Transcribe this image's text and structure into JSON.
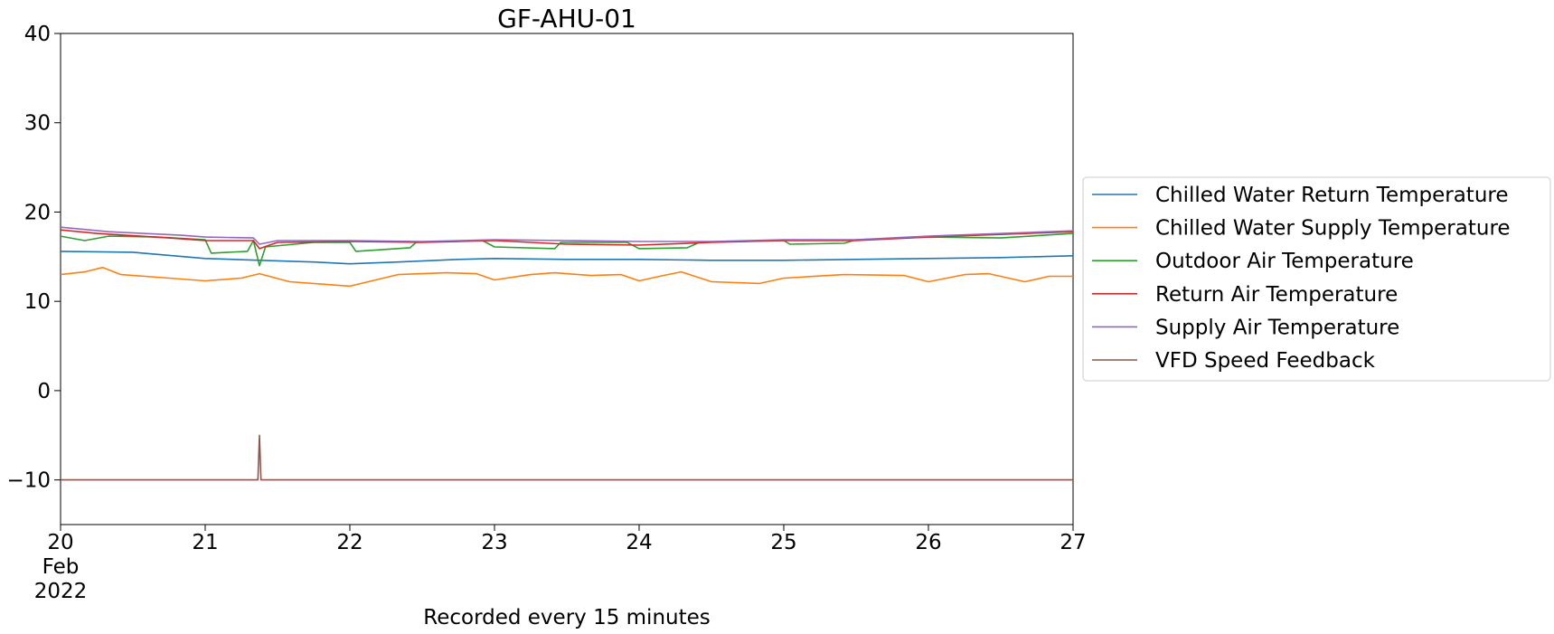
{
  "chart_data": {
    "type": "line",
    "title": "GF-AHU-01",
    "xlabel": "Recorded every 15 minutes",
    "ylabel": "",
    "xlim": [
      "2022-02-20",
      "2022-02-27"
    ],
    "ylim": [
      -15,
      40
    ],
    "x_ticks": [
      "20",
      "21",
      "22",
      "23",
      "24",
      "25",
      "26",
      "27"
    ],
    "x_tick_sub": [
      "Feb",
      "2022"
    ],
    "y_ticks": [
      40,
      30,
      20,
      10,
      0,
      -10
    ],
    "y_tick_labels": [
      "40",
      "30",
      "20",
      "10",
      "0",
      "−10"
    ],
    "grid": false,
    "legend_position": "center-right outside",
    "series": [
      {
        "name": "Chilled Water Return Temperature",
        "color": "#1f77b4",
        "points": [
          [
            "2022-02-20 00:00",
            15.6
          ],
          [
            "2022-02-20 12:00",
            15.5
          ],
          [
            "2022-02-21 00:00",
            14.8
          ],
          [
            "2022-02-21 09:00",
            14.6
          ],
          [
            "2022-02-21 18:00",
            14.4
          ],
          [
            "2022-02-22 00:00",
            14.2
          ],
          [
            "2022-02-22 08:00",
            14.4
          ],
          [
            "2022-02-22 18:00",
            14.7
          ],
          [
            "2022-02-23 00:00",
            14.8
          ],
          [
            "2022-02-23 12:00",
            14.7
          ],
          [
            "2022-02-24 00:00",
            14.7
          ],
          [
            "2022-02-24 12:00",
            14.6
          ],
          [
            "2022-02-25 00:00",
            14.6
          ],
          [
            "2022-02-25 12:00",
            14.7
          ],
          [
            "2022-02-26 00:00",
            14.8
          ],
          [
            "2022-02-26 12:00",
            14.9
          ],
          [
            "2022-02-27 00:00",
            15.1
          ]
        ]
      },
      {
        "name": "Chilled Water Supply Temperature",
        "color": "#ff7f0e",
        "points": [
          [
            "2022-02-20 00:00",
            13.0
          ],
          [
            "2022-02-20 04:00",
            13.3
          ],
          [
            "2022-02-20 07:00",
            13.8
          ],
          [
            "2022-02-20 10:00",
            13.0
          ],
          [
            "2022-02-20 16:00",
            12.7
          ],
          [
            "2022-02-21 00:00",
            12.3
          ],
          [
            "2022-02-21 06:00",
            12.6
          ],
          [
            "2022-02-21 09:00",
            13.1
          ],
          [
            "2022-02-21 14:00",
            12.2
          ],
          [
            "2022-02-21 20:00",
            11.9
          ],
          [
            "2022-02-22 00:00",
            11.7
          ],
          [
            "2022-02-22 08:00",
            13.0
          ],
          [
            "2022-02-22 16:00",
            13.2
          ],
          [
            "2022-02-22 21:00",
            13.1
          ],
          [
            "2022-02-23 00:00",
            12.4
          ],
          [
            "2022-02-23 06:00",
            13.0
          ],
          [
            "2022-02-23 10:00",
            13.2
          ],
          [
            "2022-02-23 16:00",
            12.9
          ],
          [
            "2022-02-23 21:00",
            13.0
          ],
          [
            "2022-02-24 00:00",
            12.3
          ],
          [
            "2022-02-24 04:00",
            12.9
          ],
          [
            "2022-02-24 07:00",
            13.3
          ],
          [
            "2022-02-24 12:00",
            12.2
          ],
          [
            "2022-02-24 20:00",
            12.0
          ],
          [
            "2022-02-25 00:00",
            12.6
          ],
          [
            "2022-02-25 10:00",
            13.0
          ],
          [
            "2022-02-25 20:00",
            12.9
          ],
          [
            "2022-02-26 00:00",
            12.2
          ],
          [
            "2022-02-26 06:00",
            13.0
          ],
          [
            "2022-02-26 10:00",
            13.1
          ],
          [
            "2022-02-26 16:00",
            12.2
          ],
          [
            "2022-02-26 20:00",
            12.8
          ],
          [
            "2022-02-27 00:00",
            12.8
          ]
        ]
      },
      {
        "name": "Outdoor Air Temperature",
        "color": "#2ca02c",
        "points": [
          [
            "2022-02-20 00:00",
            17.3
          ],
          [
            "2022-02-20 04:00",
            16.8
          ],
          [
            "2022-02-20 08:00",
            17.3
          ],
          [
            "2022-02-20 16:00",
            17.2
          ],
          [
            "2022-02-21 00:00",
            16.9
          ],
          [
            "2022-02-21 01:00",
            15.4
          ],
          [
            "2022-02-21 07:00",
            15.6
          ],
          [
            "2022-02-21 08:00",
            16.8
          ],
          [
            "2022-02-21 09:00",
            14.0
          ],
          [
            "2022-02-21 10:00",
            16.1
          ],
          [
            "2022-02-21 18:00",
            16.6
          ],
          [
            "2022-02-22 00:00",
            16.6
          ],
          [
            "2022-02-22 01:00",
            15.6
          ],
          [
            "2022-02-22 10:00",
            16.0
          ],
          [
            "2022-02-22 11:00",
            16.6
          ],
          [
            "2022-02-22 22:00",
            16.8
          ],
          [
            "2022-02-23 00:00",
            16.1
          ],
          [
            "2022-02-23 10:00",
            15.9
          ],
          [
            "2022-02-23 11:00",
            16.6
          ],
          [
            "2022-02-23 22:00",
            16.6
          ],
          [
            "2022-02-24 00:00",
            15.9
          ],
          [
            "2022-02-24 08:00",
            16.0
          ],
          [
            "2022-02-24 10:00",
            16.6
          ],
          [
            "2022-02-25 00:00",
            16.8
          ],
          [
            "2022-02-25 01:00",
            16.4
          ],
          [
            "2022-02-25 10:00",
            16.5
          ],
          [
            "2022-02-25 12:00",
            16.9
          ],
          [
            "2022-02-26 00:00",
            17.2
          ],
          [
            "2022-02-26 12:00",
            17.1
          ],
          [
            "2022-02-27 00:00",
            17.6
          ]
        ]
      },
      {
        "name": "Return Air Temperature",
        "color": "#d62728",
        "points": [
          [
            "2022-02-20 00:00",
            18.0
          ],
          [
            "2022-02-20 06:00",
            17.6
          ],
          [
            "2022-02-20 18:00",
            17.1
          ],
          [
            "2022-02-21 00:00",
            16.8
          ],
          [
            "2022-02-21 08:00",
            16.8
          ],
          [
            "2022-02-21 09:00",
            15.9
          ],
          [
            "2022-02-21 12:00",
            16.6
          ],
          [
            "2022-02-22 00:00",
            16.7
          ],
          [
            "2022-02-22 12:00",
            16.6
          ],
          [
            "2022-02-23 00:00",
            16.8
          ],
          [
            "2022-02-23 12:00",
            16.4
          ],
          [
            "2022-02-24 00:00",
            16.3
          ],
          [
            "2022-02-24 12:00",
            16.6
          ],
          [
            "2022-02-25 00:00",
            16.8
          ],
          [
            "2022-02-25 12:00",
            16.8
          ],
          [
            "2022-02-26 00:00",
            17.2
          ],
          [
            "2022-02-27 00:00",
            17.8
          ]
        ]
      },
      {
        "name": "Supply Air Temperature",
        "color": "#9467bd",
        "points": [
          [
            "2022-02-20 00:00",
            18.3
          ],
          [
            "2022-02-20 08:00",
            17.8
          ],
          [
            "2022-02-20 20:00",
            17.4
          ],
          [
            "2022-02-21 00:00",
            17.2
          ],
          [
            "2022-02-21 08:00",
            17.1
          ],
          [
            "2022-02-21 09:00",
            16.4
          ],
          [
            "2022-02-21 12:00",
            16.8
          ],
          [
            "2022-02-22 00:00",
            16.8
          ],
          [
            "2022-02-22 12:00",
            16.7
          ],
          [
            "2022-02-23 00:00",
            16.9
          ],
          [
            "2022-02-23 12:00",
            16.8
          ],
          [
            "2022-02-24 00:00",
            16.7
          ],
          [
            "2022-02-24 12:00",
            16.7
          ],
          [
            "2022-02-25 00:00",
            16.9
          ],
          [
            "2022-02-25 12:00",
            16.9
          ],
          [
            "2022-02-26 00:00",
            17.3
          ],
          [
            "2022-02-27 00:00",
            17.9
          ]
        ]
      },
      {
        "name": "VFD Speed Feedback",
        "color": "#8c564b",
        "points": [
          [
            "2022-02-20 00:00",
            -10.0
          ],
          [
            "2022-02-21 08:45",
            -10.0
          ],
          [
            "2022-02-21 09:00",
            -5.0
          ],
          [
            "2022-02-21 09:15",
            -10.0
          ],
          [
            "2022-02-27 00:00",
            -10.0
          ]
        ]
      }
    ]
  }
}
